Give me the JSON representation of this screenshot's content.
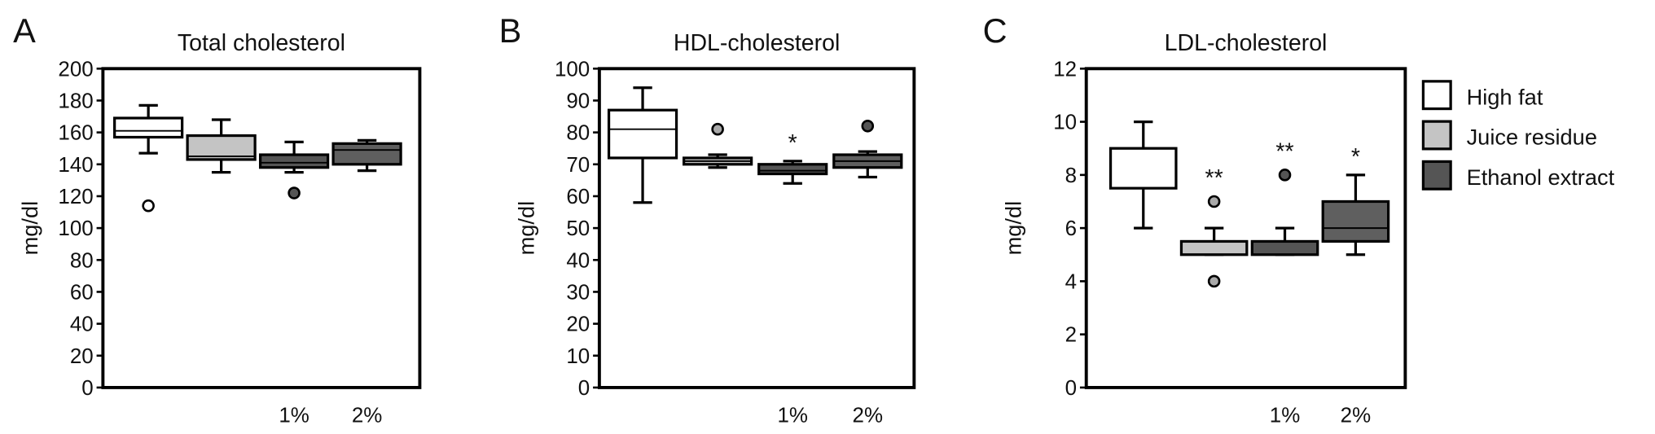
{
  "chart_data": [
    {
      "type": "box",
      "panel": "A",
      "title": "Total cholesterol",
      "y_label": "mg/dl",
      "ylim": [
        0,
        200
      ],
      "yticks": [
        0,
        20,
        40,
        60,
        80,
        100,
        120,
        140,
        160,
        180,
        200
      ],
      "categories": [
        null,
        null,
        "1%",
        "2%"
      ],
      "boxes": [
        {
          "color": "#ffffff",
          "min": 147,
          "q1": 157,
          "median": 161,
          "q3": 169,
          "max": 177,
          "outliers": [
            114
          ]
        },
        {
          "color": "#c4c4c4",
          "min": 135,
          "q1": 143,
          "median": 145,
          "q3": 158,
          "max": 168,
          "outliers": []
        },
        {
          "color": "#555555",
          "min": 135,
          "q1": 138,
          "median": 141,
          "q3": 146,
          "max": 154,
          "outliers": [
            122
          ]
        },
        {
          "color": "#5f5f5f",
          "min": 136,
          "q1": 140,
          "median": 149,
          "q3": 153,
          "max": 155,
          "outliers": []
        }
      ]
    },
    {
      "type": "box",
      "panel": "B",
      "title": "HDL-cholesterol",
      "y_label": "mg/dl",
      "ylim": [
        0,
        100
      ],
      "yticks": [
        0,
        10,
        20,
        30,
        40,
        50,
        60,
        70,
        80,
        90,
        100
      ],
      "categories": [
        null,
        null,
        "1%",
        "2%"
      ],
      "boxes": [
        {
          "color": "#ffffff",
          "min": 58,
          "q1": 72,
          "median": 81,
          "q3": 87,
          "max": 94,
          "outliers": []
        },
        {
          "color": "#c4c4c4",
          "min": 69,
          "q1": 70,
          "median": 71,
          "q3": 72,
          "max": 73,
          "outliers": [
            81
          ]
        },
        {
          "color": "#555555",
          "min": 64,
          "q1": 67,
          "median": 68,
          "q3": 70,
          "max": 71,
          "outliers": [],
          "annotation": "*"
        },
        {
          "color": "#5f5f5f",
          "min": 66,
          "q1": 69,
          "median": 71,
          "q3": 73,
          "max": 74,
          "outliers": [
            82
          ]
        }
      ]
    },
    {
      "type": "box",
      "panel": "C",
      "title": "LDL-cholesterol",
      "y_label": "mg/dl",
      "ylim": [
        0,
        12
      ],
      "yticks": [
        0,
        2,
        4,
        6,
        8,
        10,
        12
      ],
      "categories": [
        null,
        null,
        "1%",
        "2%"
      ],
      "boxes": [
        {
          "color": "#ffffff",
          "min": 6,
          "q1": 7.5,
          "median": 7.5,
          "q3": 9,
          "max": 10,
          "outliers": []
        },
        {
          "color": "#c4c4c4",
          "min": 5,
          "q1": 5,
          "median": 5,
          "q3": 5.5,
          "max": 6,
          "outliers": [
            7,
            4
          ],
          "annotation": "**"
        },
        {
          "color": "#555555",
          "min": 5,
          "q1": 5,
          "median": 5.5,
          "q3": 5.5,
          "max": 6,
          "outliers": [
            8
          ],
          "annotation": "**"
        },
        {
          "color": "#5f5f5f",
          "min": 5,
          "q1": 5.5,
          "median": 6,
          "q3": 7,
          "max": 8,
          "outliers": [],
          "annotation": "*"
        }
      ]
    }
  ],
  "legend": [
    {
      "name": "High fat",
      "color": "#ffffff"
    },
    {
      "name": "Juice residue",
      "color": "#c4c4c4"
    },
    {
      "name": "Ethanol extract",
      "color": "#555555"
    }
  ]
}
